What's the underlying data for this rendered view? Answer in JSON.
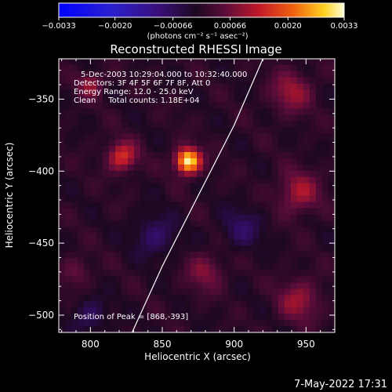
{
  "chart_data": {
    "type": "heatmap",
    "title": "Reconstructed RHESSI Image",
    "xlabel": "Heliocentric X (arcsec)",
    "ylabel": "Heliocentric Y (arcsec)",
    "xlim": [
      778,
      970
    ],
    "ylim": [
      -512,
      -322
    ],
    "x_ticks": [
      800,
      850,
      900,
      950
    ],
    "x_tick_labels": [
      "800",
      "850",
      "900",
      "950"
    ],
    "y_ticks": [
      -350,
      -400,
      -450,
      -500
    ],
    "y_tick_labels": [
      "−350",
      "−400",
      "−450",
      "−500"
    ],
    "colorbar": {
      "range": [
        -0.0033,
        0.0033
      ],
      "ticks": [
        -0.0033,
        -0.002,
        -0.00066,
        0.00066,
        0.002,
        0.0033
      ],
      "tick_labels": [
        "−0.0033",
        "−0.0020",
        "−0.00066",
        "0.00066",
        "0.0020",
        "0.0033"
      ],
      "units_label": "(photons cm⁻² s⁻¹ asec⁻²)"
    },
    "info_lines": [
      "5-Dec-2003 10:29:04.000 to 10:32:40.000",
      "Detectors: 3F 4F 5F 6F 7F 8F, Att 0",
      "Energy Range: 12.0 - 25.0 keV",
      "Clean     Total counts: 1.18E+04"
    ],
    "peak_label": "Position of Peak = [868,-393]",
    "peak": {
      "x": 868,
      "y": -393,
      "value": 0.0033
    },
    "sources": [
      {
        "x": 868,
        "y": -393,
        "sigma": 6,
        "amp": 0.0033
      },
      {
        "x": 822,
        "y": -390,
        "sigma": 7,
        "amp": 0.0016
      },
      {
        "x": 800,
        "y": -340,
        "sigma": 6,
        "amp": 0.001
      },
      {
        "x": 940,
        "y": -345,
        "sigma": 10,
        "amp": 0.001
      },
      {
        "x": 945,
        "y": -415,
        "sigma": 10,
        "amp": 0.0011
      },
      {
        "x": 945,
        "y": -490,
        "sigma": 10,
        "amp": 0.001
      },
      {
        "x": 880,
        "y": -470,
        "sigma": 9,
        "amp": 0.0008
      },
      {
        "x": 790,
        "y": -470,
        "sigma": 7,
        "amp": 0.0006
      },
      {
        "x": 845,
        "y": -445,
        "sigma": 10,
        "amp": -0.0008
      },
      {
        "x": 905,
        "y": -440,
        "sigma": 10,
        "amp": -0.0007
      },
      {
        "x": 800,
        "y": -500,
        "sigma": 8,
        "amp": -0.0007
      }
    ],
    "limb_curve": [
      {
        "x": 829,
        "y": -512
      },
      {
        "x": 850,
        "y": -466
      },
      {
        "x": 875,
        "y": -417
      },
      {
        "x": 900,
        "y": -368
      },
      {
        "x": 920,
        "y": -322
      }
    ]
  },
  "timestamp": "7-May-2022 17:31"
}
